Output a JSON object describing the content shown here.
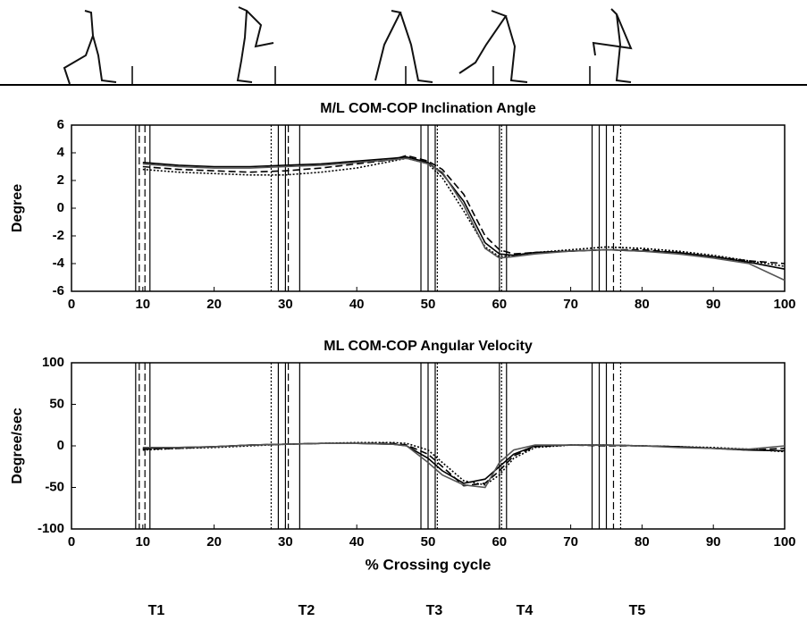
{
  "chart_data": [
    {
      "type": "line",
      "title": "M/L COM-COP Inclination Angle",
      "ylabel": "Degree",
      "xlim": [
        0,
        100
      ],
      "xticks": [
        0,
        10,
        20,
        30,
        40,
        50,
        60,
        70,
        80,
        90,
        100
      ],
      "ylim": [
        -6,
        6
      ],
      "yticks": [
        -6,
        -4,
        -2,
        0,
        2,
        4,
        6
      ],
      "event_lines": [
        {
          "x": 9,
          "style": "solid"
        },
        {
          "x": 9.5,
          "style": "dashed"
        },
        {
          "x": 10.3,
          "style": "dashed"
        },
        {
          "x": 11,
          "style": "solid"
        },
        {
          "x": 28,
          "style": "dotted"
        },
        {
          "x": 29,
          "style": "solid"
        },
        {
          "x": 30,
          "style": "solid"
        },
        {
          "x": 30.4,
          "style": "dashed"
        },
        {
          "x": 32,
          "style": "solid"
        },
        {
          "x": 49,
          "style": "solid"
        },
        {
          "x": 50,
          "style": "solid"
        },
        {
          "x": 51,
          "style": "solid"
        },
        {
          "x": 51.3,
          "style": "dotted"
        },
        {
          "x": 60,
          "style": "solid"
        },
        {
          "x": 60.3,
          "style": "dotted"
        },
        {
          "x": 61,
          "style": "solid"
        },
        {
          "x": 73,
          "style": "solid"
        },
        {
          "x": 74,
          "style": "solid"
        },
        {
          "x": 75,
          "style": "solid"
        },
        {
          "x": 76,
          "style": "dashed"
        },
        {
          "x": 77,
          "style": "dotted"
        }
      ],
      "x": [
        10,
        15,
        20,
        25,
        30,
        35,
        40,
        45,
        47,
        50,
        52,
        55,
        58,
        60,
        62,
        65,
        70,
        75,
        80,
        85,
        90,
        95,
        100
      ],
      "series": [
        {
          "color": "#000000",
          "dash": "solid",
          "values": [
            3.3,
            3.1,
            3.0,
            3.0,
            3.1,
            3.2,
            3.4,
            3.6,
            3.7,
            3.3,
            2.5,
            0.5,
            -2.5,
            -3.3,
            -3.4,
            -3.2,
            -3.1,
            -3.0,
            -3.1,
            -3.2,
            -3.5,
            -3.9,
            -4.4
          ]
        },
        {
          "color": "#000000",
          "dash": "dotted",
          "values": [
            2.8,
            2.6,
            2.5,
            2.4,
            2.4,
            2.6,
            2.9,
            3.4,
            3.6,
            3.2,
            2.2,
            -0.2,
            -2.8,
            -3.5,
            -3.4,
            -3.2,
            -3.0,
            -2.8,
            -2.9,
            -3.1,
            -3.4,
            -3.8,
            -4.2
          ]
        },
        {
          "color": "#000000",
          "dash": "dashed",
          "values": [
            3.0,
            2.8,
            2.7,
            2.6,
            2.7,
            2.9,
            3.2,
            3.5,
            3.8,
            3.4,
            2.8,
            1.0,
            -2.0,
            -3.0,
            -3.3,
            -3.2,
            -3.1,
            -3.0,
            -3.0,
            -3.2,
            -3.5,
            -3.8,
            -4.0
          ]
        },
        {
          "color": "#555555",
          "dash": "solid",
          "values": [
            3.2,
            3.0,
            2.9,
            2.9,
            3.0,
            3.1,
            3.3,
            3.5,
            3.6,
            3.2,
            2.6,
            0.2,
            -2.9,
            -3.6,
            -3.5,
            -3.3,
            -3.1,
            -3.0,
            -3.1,
            -3.3,
            -3.6,
            -4.0,
            -5.2
          ]
        }
      ]
    },
    {
      "type": "line",
      "title": "ML COM-COP Angular Velocity",
      "ylabel": "Degree/sec",
      "xlabel": "% Crossing cycle",
      "xlim": [
        0,
        100
      ],
      "xticks": [
        0,
        10,
        20,
        30,
        40,
        50,
        60,
        70,
        80,
        90,
        100
      ],
      "ylim": [
        -100,
        100
      ],
      "yticks": [
        -100,
        -50,
        0,
        50,
        100
      ],
      "event_lines": [
        {
          "x": 9,
          "style": "solid"
        },
        {
          "x": 9.5,
          "style": "dashed"
        },
        {
          "x": 10.3,
          "style": "dashed"
        },
        {
          "x": 11,
          "style": "solid"
        },
        {
          "x": 28,
          "style": "dotted"
        },
        {
          "x": 29,
          "style": "solid"
        },
        {
          "x": 30,
          "style": "solid"
        },
        {
          "x": 30.4,
          "style": "dashed"
        },
        {
          "x": 32,
          "style": "solid"
        },
        {
          "x": 49,
          "style": "solid"
        },
        {
          "x": 50,
          "style": "solid"
        },
        {
          "x": 51,
          "style": "solid"
        },
        {
          "x": 51.3,
          "style": "dotted"
        },
        {
          "x": 60,
          "style": "solid"
        },
        {
          "x": 60.3,
          "style": "dotted"
        },
        {
          "x": 61,
          "style": "solid"
        },
        {
          "x": 73,
          "style": "solid"
        },
        {
          "x": 74,
          "style": "solid"
        },
        {
          "x": 75,
          "style": "solid"
        },
        {
          "x": 76,
          "style": "dashed"
        },
        {
          "x": 77,
          "style": "dotted"
        }
      ],
      "x": [
        10,
        15,
        20,
        25,
        30,
        35,
        40,
        45,
        47,
        50,
        52,
        55,
        58,
        60,
        62,
        65,
        70,
        75,
        80,
        85,
        90,
        95,
        100
      ],
      "series": [
        {
          "color": "#000000",
          "dash": "solid",
          "values": [
            -3,
            -2,
            -1,
            1,
            2,
            3,
            3,
            2,
            0,
            -15,
            -30,
            -45,
            -40,
            -25,
            -10,
            0,
            1,
            1,
            0,
            -1,
            -3,
            -5,
            -6
          ]
        },
        {
          "color": "#000000",
          "dash": "dotted",
          "values": [
            -5,
            -3,
            -2,
            0,
            2,
            3,
            4,
            4,
            3,
            -5,
            -20,
            -42,
            -47,
            -35,
            -15,
            -2,
            1,
            1,
            0,
            -1,
            -2,
            -4,
            -7
          ]
        },
        {
          "color": "#000000",
          "dash": "dashed",
          "values": [
            -4,
            -3,
            -1,
            1,
            2,
            3,
            3,
            3,
            1,
            -10,
            -25,
            -48,
            -45,
            -30,
            -12,
            -1,
            1,
            0,
            0,
            -1,
            -3,
            -5,
            -3
          ]
        },
        {
          "color": "#555555",
          "dash": "solid",
          "values": [
            -2,
            -2,
            -1,
            1,
            2,
            3,
            3,
            2,
            0,
            -20,
            -35,
            -47,
            -50,
            -20,
            -5,
            1,
            1,
            1,
            0,
            -2,
            -3,
            -4,
            0
          ]
        }
      ],
      "phase_labels": [
        "T1",
        "T2",
        "T3",
        "T4",
        "T5"
      ]
    }
  ]
}
